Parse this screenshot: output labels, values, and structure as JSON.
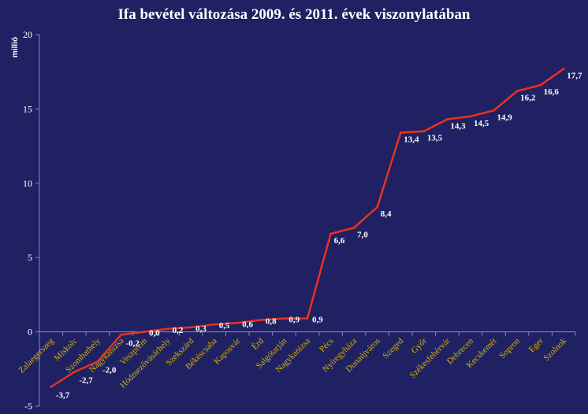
{
  "chart_data": {
    "type": "line",
    "title": "Ifa bevétel változása 2009. és 2011. évek viszonylatában",
    "ylabel": "millió",
    "xlabel": "",
    "ylim": [
      -5,
      20
    ],
    "yticks": [
      "-5",
      "0",
      "5",
      "10",
      "15",
      "20"
    ],
    "grid": false,
    "legend": "none",
    "line_color": "#e8321e",
    "categories": [
      "Zalaegerszeg",
      "Miskolc",
      "Szombathely",
      "Nagykanizsa",
      "Veszprém",
      "Hódmezővásárhely",
      "Szekszárd",
      "Békéscsaba",
      "Kaposvár",
      "Érd",
      "Salgótarján",
      "Nagykanizsa",
      "Pécs",
      "Nyíregyháza",
      "Dunaújváros",
      "Szeged",
      "Győr",
      "Székesfehérvár",
      "Debrecen",
      "Kecskemét",
      "Sopron",
      "Eger",
      "Szolnok"
    ],
    "values": [
      -3.7,
      -2.7,
      -2.0,
      -0.2,
      0.0,
      0.2,
      0.3,
      0.5,
      0.6,
      0.8,
      0.9,
      0.9,
      6.6,
      7.0,
      8.4,
      13.4,
      13.5,
      14.3,
      14.5,
      14.9,
      16.2,
      16.6,
      17.7
    ],
    "data_labels": [
      "-3,7",
      "-2,7",
      "-2,0",
      "-0,2",
      "0,0",
      "0,2",
      "0,3",
      "0,5",
      "0,6",
      "0,8",
      "0,9",
      "0,9",
      "6,6",
      "7,0",
      "8,4",
      "13,4",
      "13,5",
      "14,3",
      "14,5",
      "14,9",
      "16,2",
      "16,6",
      "17,7"
    ]
  }
}
